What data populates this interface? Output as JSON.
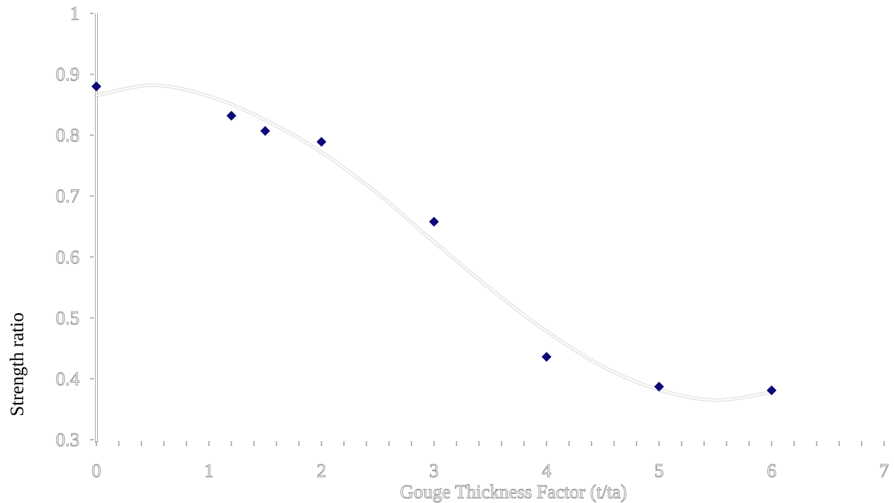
{
  "chart_data": {
    "type": "scatter",
    "title": "",
    "xlabel": "Gouge Thickness Factor (t/ta)",
    "ylabel": "Strength ratio",
    "xlim": [
      0,
      7
    ],
    "ylim": [
      0.3,
      1
    ],
    "x_ticks": [
      "0",
      "1",
      "2",
      "3",
      "4",
      "5",
      "6",
      "7"
    ],
    "y_ticks": [
      "0.3",
      "0.4",
      "0.5",
      "0.6",
      "0.7",
      "0.8",
      "0.9",
      "1"
    ],
    "grid": false,
    "legend": "none",
    "marker_color": "#0a0a78",
    "series": [
      {
        "marker": "diamond",
        "x": [
          0,
          1.2,
          1.5,
          2,
          3,
          4,
          5,
          6
        ],
        "y": [
          0.88,
          0.832,
          0.807,
          0.789,
          0.658,
          0.436,
          0.387,
          0.381
        ]
      }
    ],
    "trendline": {
      "type": "polynomial",
      "style": "dotted",
      "x": [
        0,
        0.5,
        1,
        1.5,
        2,
        2.5,
        3,
        3.5,
        4,
        4.5,
        5,
        5.5,
        6
      ],
      "y": [
        0.865,
        0.882,
        0.864,
        0.825,
        0.772,
        0.704,
        0.625,
        0.548,
        0.478,
        0.42,
        0.382,
        0.365,
        0.378
      ]
    }
  }
}
